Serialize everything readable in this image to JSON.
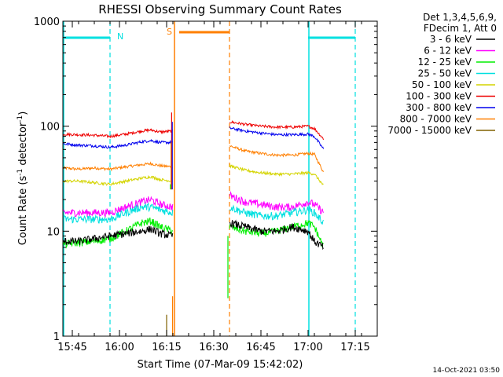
{
  "chart_data": {
    "type": "line",
    "title": "RHESSI Observing Summary Count Rates",
    "xlabel": "Start Time (07-Mar-09 15:42:02)",
    "ylabel_prefix": "Count Rate (s",
    "ylabel_sup1": "-1",
    "ylabel_mid": " detector",
    "ylabel_sup2": "-1",
    "ylabel_suffix": ")",
    "x_unit": "minutes since 15:42:02",
    "xlim": [
      0,
      100
    ],
    "ylim": [
      1,
      1000
    ],
    "yscale": "log",
    "xticks": [
      {
        "label": "15:45",
        "value": 3
      },
      {
        "label": "16:00",
        "value": 18
      },
      {
        "label": "16:15",
        "value": 33
      },
      {
        "label": "16:30",
        "value": 48
      },
      {
        "label": "16:45",
        "value": 63
      },
      {
        "label": "17:00",
        "value": 78
      },
      {
        "label": "17:15",
        "value": 93
      }
    ],
    "yticks": [
      {
        "label": "1",
        "value": 1
      },
      {
        "label": "10",
        "value": 10
      },
      {
        "label": "100",
        "value": 100
      },
      {
        "label": "1000",
        "value": 1000
      }
    ],
    "legend": {
      "placement": "right",
      "header_line1": "Det 1,3,4,5,6,9,",
      "header_line2": "FDecim 1, Att 0",
      "entries": [
        {
          "label": "3 - 6 keV",
          "color": "#000000"
        },
        {
          "label": "6 - 12 keV",
          "color": "#ff00ff"
        },
        {
          "label": "12 - 25 keV",
          "color": "#00ee00"
        },
        {
          "label": "25 - 50 keV",
          "color": "#00e0e0"
        },
        {
          "label": "50 - 100 keV",
          "color": "#d4d400"
        },
        {
          "label": "100 - 300 keV",
          "color": "#ee0000"
        },
        {
          "label": "300 - 800 keV",
          "color": "#0000ee"
        },
        {
          "label": "800 - 7000 keV",
          "color": "#ff7f00"
        },
        {
          "label": "7000 - 15000 keV",
          "color": "#806000"
        }
      ]
    },
    "segments": [
      [
        0,
        35
      ],
      [
        53,
        83
      ]
    ],
    "series": [
      {
        "color": "#ff7f00",
        "values": [
          [
            0,
            40
          ],
          [
            5,
            39
          ],
          [
            10,
            40
          ],
          [
            15,
            39
          ],
          [
            20,
            41
          ],
          [
            25,
            43
          ],
          [
            28,
            44
          ],
          [
            31,
            42
          ],
          [
            35,
            41
          ],
          [
            53,
            65
          ],
          [
            58,
            58
          ],
          [
            63,
            55
          ],
          [
            68,
            53
          ],
          [
            73,
            53
          ],
          [
            78,
            55
          ],
          [
            80,
            54
          ],
          [
            83,
            36
          ]
        ]
      },
      {
        "color": "#ee0000",
        "values": [
          [
            0,
            84
          ],
          [
            5,
            83
          ],
          [
            10,
            82
          ],
          [
            15,
            80
          ],
          [
            20,
            84
          ],
          [
            25,
            90
          ],
          [
            28,
            92
          ],
          [
            31,
            88
          ],
          [
            35,
            90
          ],
          [
            53,
            110
          ],
          [
            58,
            104
          ],
          [
            63,
            100
          ],
          [
            68,
            98
          ],
          [
            73,
            98
          ],
          [
            78,
            100
          ],
          [
            80,
            95
          ],
          [
            83,
            75
          ]
        ]
      },
      {
        "color": "#0000ee",
        "values": [
          [
            0,
            68
          ],
          [
            5,
            66
          ],
          [
            10,
            65
          ],
          [
            15,
            63
          ],
          [
            20,
            66
          ],
          [
            25,
            71
          ],
          [
            28,
            73
          ],
          [
            31,
            70
          ],
          [
            35,
            70
          ],
          [
            53,
            96
          ],
          [
            58,
            90
          ],
          [
            63,
            86
          ],
          [
            68,
            83
          ],
          [
            73,
            83
          ],
          [
            78,
            84
          ],
          [
            80,
            80
          ],
          [
            83,
            60
          ]
        ]
      },
      {
        "color": "#d4d400",
        "values": [
          [
            0,
            30
          ],
          [
            5,
            30
          ],
          [
            10,
            29
          ],
          [
            15,
            28
          ],
          [
            20,
            30
          ],
          [
            25,
            32
          ],
          [
            28,
            33
          ],
          [
            31,
            31
          ],
          [
            35,
            30
          ],
          [
            53,
            42
          ],
          [
            58,
            38
          ],
          [
            63,
            36
          ],
          [
            68,
            35
          ],
          [
            73,
            35
          ],
          [
            78,
            36
          ],
          [
            80,
            35
          ],
          [
            83,
            27
          ]
        ]
      },
      {
        "color": "#ff00ff",
        "values": [
          [
            0,
            15
          ],
          [
            5,
            15
          ],
          [
            10,
            15
          ],
          [
            15,
            15
          ],
          [
            20,
            17
          ],
          [
            25,
            19
          ],
          [
            28,
            20
          ],
          [
            31,
            18
          ],
          [
            35,
            17
          ],
          [
            53,
            22
          ],
          [
            58,
            19
          ],
          [
            63,
            18
          ],
          [
            68,
            17
          ],
          [
            73,
            17
          ],
          [
            78,
            19
          ],
          [
            80,
            18
          ],
          [
            83,
            15
          ]
        ]
      },
      {
        "color": "#00e0e0",
        "values": [
          [
            0,
            13
          ],
          [
            5,
            13
          ],
          [
            10,
            13
          ],
          [
            15,
            13
          ],
          [
            20,
            15
          ],
          [
            25,
            17
          ],
          [
            28,
            17
          ],
          [
            31,
            16
          ],
          [
            35,
            15
          ],
          [
            53,
            17
          ],
          [
            58,
            15
          ],
          [
            63,
            14
          ],
          [
            68,
            14
          ],
          [
            73,
            15
          ],
          [
            78,
            16
          ],
          [
            80,
            15
          ],
          [
            83,
            12
          ]
        ]
      },
      {
        "color": "#00ee00",
        "values": [
          [
            0,
            7.5
          ],
          [
            5,
            7.8
          ],
          [
            10,
            8
          ],
          [
            15,
            8.5
          ],
          [
            20,
            10
          ],
          [
            25,
            12
          ],
          [
            28,
            12.5
          ],
          [
            31,
            11
          ],
          [
            35,
            10
          ],
          [
            53,
            11
          ],
          [
            58,
            10
          ],
          [
            63,
            9.5
          ],
          [
            68,
            10
          ],
          [
            73,
            11
          ],
          [
            78,
            12
          ],
          [
            80,
            11
          ],
          [
            83,
            7
          ]
        ]
      },
      {
        "color": "#000000",
        "values": [
          [
            0,
            8
          ],
          [
            5,
            8
          ],
          [
            10,
            8.5
          ],
          [
            15,
            9
          ],
          [
            20,
            9.5
          ],
          [
            25,
            10
          ],
          [
            28,
            10.5
          ],
          [
            31,
            9.5
          ],
          [
            35,
            9
          ],
          [
            53,
            12
          ],
          [
            58,
            11
          ],
          [
            63,
            10
          ],
          [
            68,
            10
          ],
          [
            73,
            11
          ],
          [
            78,
            10
          ],
          [
            80,
            8
          ],
          [
            83,
            7
          ]
        ]
      }
    ],
    "annotations": {
      "flag_N_label": "N",
      "flag_S_label": "S",
      "night_solid_x": [
        0,
        78
      ],
      "night_dash_x": [
        15,
        93
      ],
      "saa_solid_x": 35.5,
      "saa_dash_x": 53,
      "night_flag_color": "#00e0e0",
      "saa_flag_color": "#ff7f00"
    },
    "timestamp": "14-Oct-2021 03:50"
  }
}
